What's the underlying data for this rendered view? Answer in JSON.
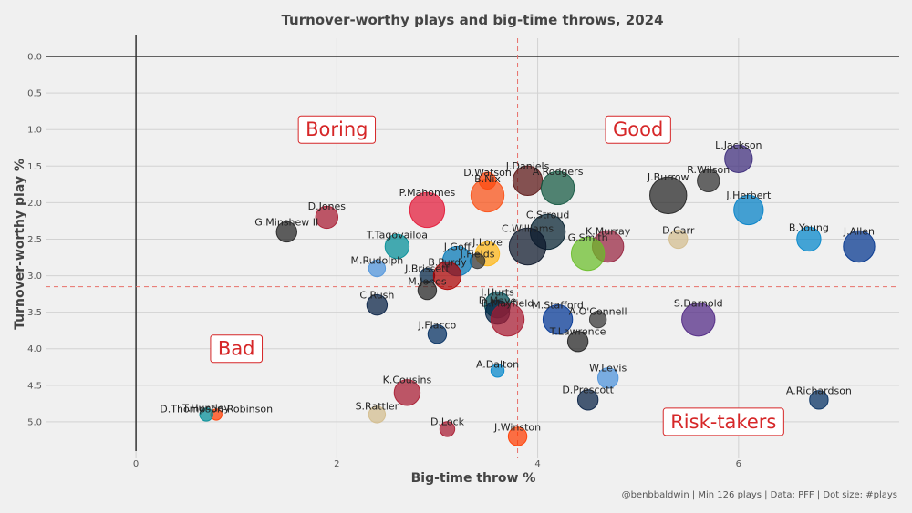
{
  "chart_data": {
    "type": "scatter",
    "title": "Turnover-worthy plays and big-time throws, 2024",
    "xlabel": "Big-time throw %",
    "ylabel": "Turnover-worthy play %",
    "caption": "@benbbaldwin | Min 126 plays | Data: PFF | Dot size: #plays",
    "xlim": [
      -0.9,
      7.6
    ],
    "ylim": [
      5.5,
      -0.25
    ],
    "y_reversed": true,
    "x_ticks": [
      0,
      2,
      4,
      6
    ],
    "y_ticks": [
      0.0,
      0.5,
      1.0,
      1.5,
      2.0,
      2.5,
      3.0,
      3.5,
      4.0,
      4.5,
      5.0
    ],
    "reference_lines": {
      "x_mean": 3.8,
      "y_mean": 3.15
    },
    "quadrants": [
      {
        "label": "Boring",
        "x": 2.0,
        "y": 1.0
      },
      {
        "label": "Good",
        "x": 5.0,
        "y": 1.0
      },
      {
        "label": "Bad",
        "x": 1.0,
        "y": 4.0
      },
      {
        "label": "Risk-takers",
        "x": 5.85,
        "y": 5.0
      }
    ],
    "points": [
      {
        "name": "L.Jackson",
        "x": 6.0,
        "y": 1.4,
        "size": 12,
        "color": "#3b2a7a"
      },
      {
        "name": "R.Wilson",
        "x": 5.7,
        "y": 1.7,
        "size": 9,
        "color": "#2f2f2f"
      },
      {
        "name": "J.Burrow",
        "x": 5.3,
        "y": 1.9,
        "size": 17,
        "color": "#222222"
      },
      {
        "name": "J.Herbert",
        "x": 6.1,
        "y": 2.1,
        "size": 13,
        "color": "#0080c6"
      },
      {
        "name": "D.Carr",
        "x": 5.4,
        "y": 2.5,
        "size": 7,
        "color": "#d3bc8d"
      },
      {
        "name": "B.Young",
        "x": 6.7,
        "y": 2.5,
        "size": 10,
        "color": "#0085ca"
      },
      {
        "name": "J.Allen",
        "x": 7.2,
        "y": 2.6,
        "size": 14,
        "color": "#00338d"
      },
      {
        "name": "J.Daniels",
        "x": 3.9,
        "y": 1.7,
        "size": 13,
        "color": "#5a1414"
      },
      {
        "name": "A.Rodgers",
        "x": 4.2,
        "y": 1.8,
        "size": 15,
        "color": "#125740"
      },
      {
        "name": "D.Watson",
        "x": 3.5,
        "y": 1.7,
        "size": 6,
        "color": "#ff3c00"
      },
      {
        "name": "B.Nix",
        "x": 3.5,
        "y": 1.9,
        "size": 15,
        "color": "#fb4f14"
      },
      {
        "name": "C.Stroud",
        "x": 4.1,
        "y": 2.4,
        "size": 16,
        "color": "#03202f"
      },
      {
        "name": "C.Williams",
        "x": 3.9,
        "y": 2.6,
        "size": 17,
        "color": "#0b162a"
      },
      {
        "name": "K.Murray",
        "x": 4.7,
        "y": 2.6,
        "size": 14,
        "color": "#97233f"
      },
      {
        "name": "G.Smith",
        "x": 4.5,
        "y": 2.7,
        "size": 15,
        "color": "#69be28"
      },
      {
        "name": "J.Love",
        "x": 3.5,
        "y": 2.7,
        "size": 10,
        "color": "#ffb612"
      },
      {
        "name": "J.Fields",
        "x": 3.4,
        "y": 2.8,
        "size": 5,
        "color": "#333333"
      },
      {
        "name": "P.Mahomes",
        "x": 2.9,
        "y": 2.1,
        "size": 16,
        "color": "#e31837"
      },
      {
        "name": "D.Jones",
        "x": 1.9,
        "y": 2.2,
        "size": 9,
        "color": "#a71930"
      },
      {
        "name": "G.Minshew II",
        "x": 1.5,
        "y": 2.4,
        "size": 8,
        "color": "#222222"
      },
      {
        "name": "T.Tagovailoa",
        "x": 2.6,
        "y": 2.6,
        "size": 10,
        "color": "#008e97"
      },
      {
        "name": "J.Goff",
        "x": 3.2,
        "y": 2.8,
        "size": 13,
        "color": "#0076b6"
      },
      {
        "name": "M.Rudolph",
        "x": 2.4,
        "y": 2.9,
        "size": 6,
        "color": "#4b92db"
      },
      {
        "name": "J.Brissett",
        "x": 2.9,
        "y": 3.0,
        "size": 5,
        "color": "#002244"
      },
      {
        "name": "B.Purdy",
        "x": 3.1,
        "y": 3.0,
        "size": 12,
        "color": "#aa0000"
      },
      {
        "name": "M.Jones",
        "x": 2.9,
        "y": 3.2,
        "size": 7,
        "color": "#222222"
      },
      {
        "name": "C.Rush",
        "x": 2.4,
        "y": 3.4,
        "size": 8,
        "color": "#041e42"
      },
      {
        "name": "J.Hurts",
        "x": 3.6,
        "y": 3.4,
        "size": 11,
        "color": "#004c54"
      },
      {
        "name": "D.Maye",
        "x": 3.6,
        "y": 3.5,
        "size": 10,
        "color": "#002244"
      },
      {
        "name": "B.Mayfield",
        "x": 3.7,
        "y": 3.6,
        "size": 15,
        "color": "#a71930"
      },
      {
        "name": "M.Stafford",
        "x": 4.2,
        "y": 3.6,
        "size": 13,
        "color": "#003594"
      },
      {
        "name": "A.O'Connell",
        "x": 4.6,
        "y": 3.6,
        "size": 6,
        "color": "#333333"
      },
      {
        "name": "S.Darnold",
        "x": 5.6,
        "y": 3.6,
        "size": 15,
        "color": "#4f2683"
      },
      {
        "name": "J.Flacco",
        "x": 3.0,
        "y": 3.8,
        "size": 7,
        "color": "#002c5f"
      },
      {
        "name": "T.Lawrence",
        "x": 4.4,
        "y": 3.9,
        "size": 8,
        "color": "#222222"
      },
      {
        "name": "A.Dalton",
        "x": 3.6,
        "y": 4.3,
        "size": 4,
        "color": "#0085ca"
      },
      {
        "name": "W.Levis",
        "x": 4.7,
        "y": 4.4,
        "size": 8,
        "color": "#4b92db"
      },
      {
        "name": "K.Cousins",
        "x": 2.7,
        "y": 4.6,
        "size": 11,
        "color": "#a71930"
      },
      {
        "name": "D.Prescott",
        "x": 4.5,
        "y": 4.7,
        "size": 8,
        "color": "#041e42"
      },
      {
        "name": "A.Richardson",
        "x": 6.8,
        "y": 4.7,
        "size": 7,
        "color": "#002c5f"
      },
      {
        "name": "D.Thompson-Robinson",
        "x": 0.8,
        "y": 4.9,
        "size": 3,
        "color": "#ff3c00"
      },
      {
        "name": "T.Huntley",
        "x": 0.7,
        "y": 4.9,
        "size": 4,
        "color": "#008e97"
      },
      {
        "name": "S.Rattler",
        "x": 2.4,
        "y": 4.9,
        "size": 6,
        "color": "#d3bc8d"
      },
      {
        "name": "D.Lock",
        "x": 3.1,
        "y": 5.1,
        "size": 5,
        "color": "#a71930"
      },
      {
        "name": "J.Winston",
        "x": 3.8,
        "y": 5.2,
        "size": 7,
        "color": "#ff3c00"
      }
    ]
  }
}
